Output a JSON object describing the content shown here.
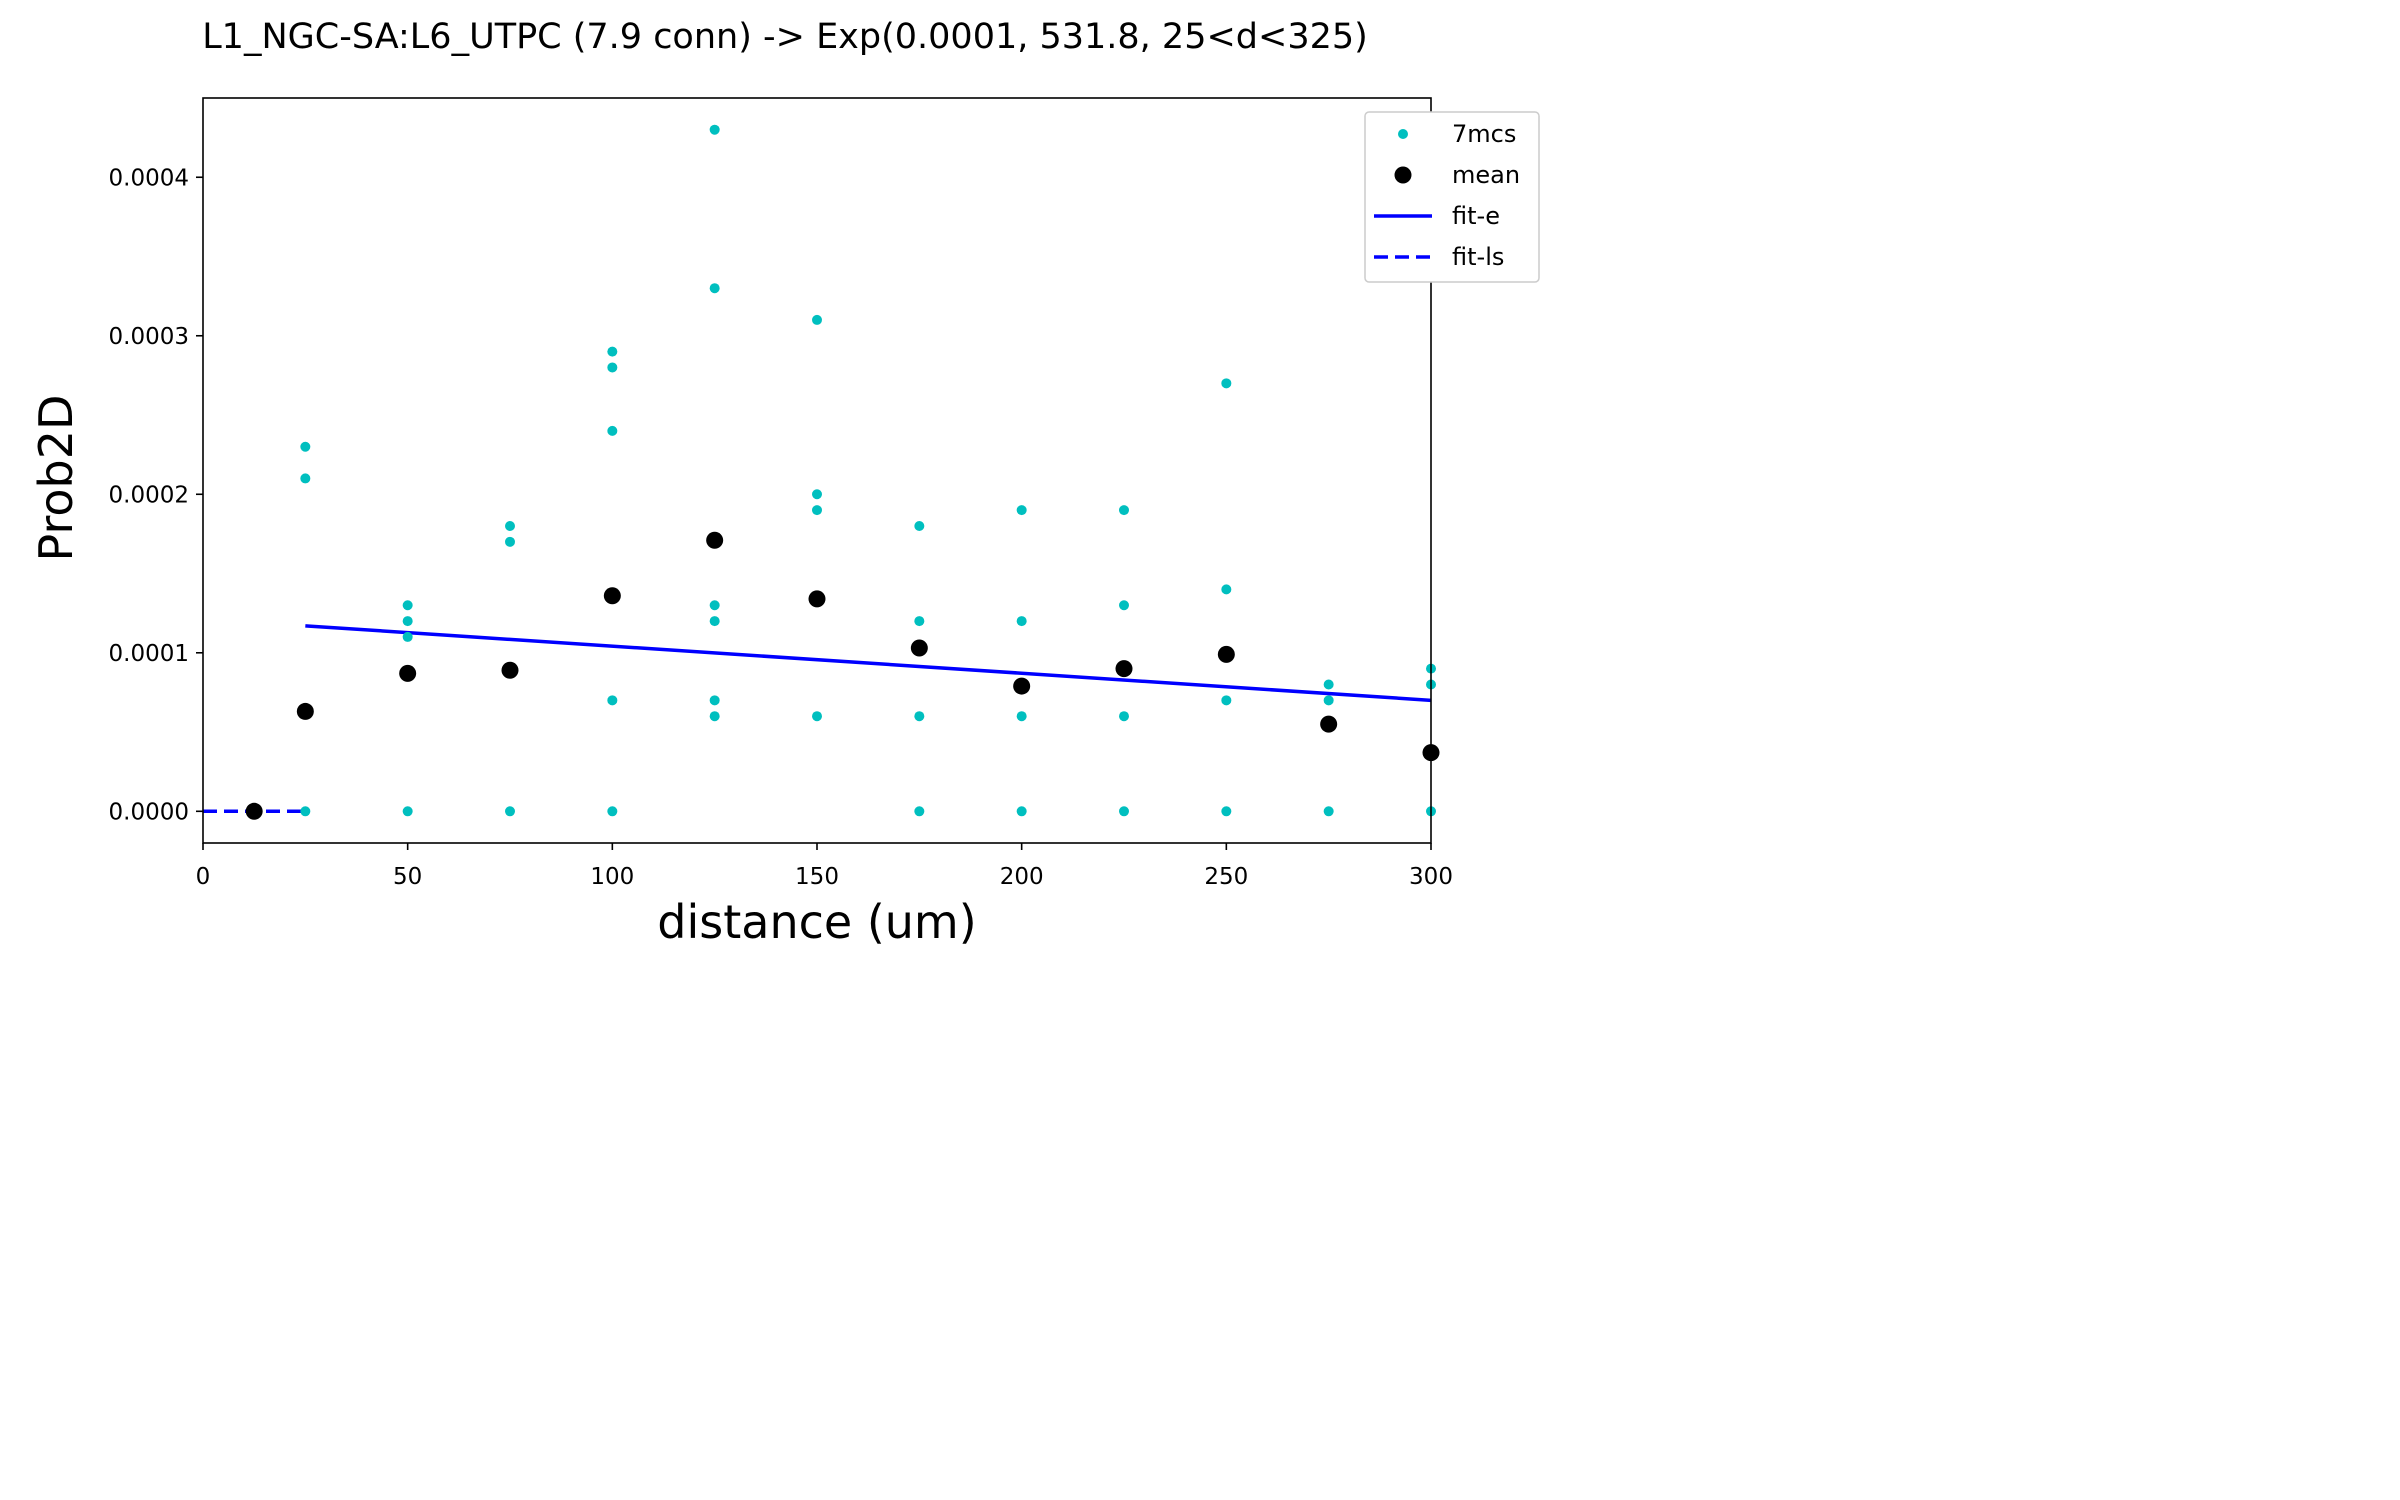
{
  "chart_data": {
    "type": "scatter",
    "title": "L1_NGC-SA:L6_UTPC (7.9 conn) -> Exp(0.0001, 531.8, 25<d<325)",
    "xlabel": "distance (um)",
    "ylabel": "Prob2D",
    "xlim": [
      0,
      300
    ],
    "ylim": [
      -2e-05,
      0.00045
    ],
    "x_ticks": [
      0,
      50,
      100,
      150,
      200,
      250,
      300
    ],
    "x_tick_labels": [
      "0",
      "50",
      "100",
      "150",
      "200",
      "250",
      "300"
    ],
    "y_ticks": [
      0,
      0.0001,
      0.0002,
      0.0003,
      0.0004
    ],
    "y_tick_labels": [
      "0.0000",
      "0.0001",
      "0.0002",
      "0.0003",
      "0.0004"
    ],
    "grid": false,
    "legend_position": "top-right",
    "legend": [
      "7mcs",
      "mean",
      "fit-e",
      "fit-ls"
    ],
    "series": [
      {
        "name": "7mcs",
        "kind": "scatter",
        "color": "#00bfbf",
        "points": [
          [
            25,
            0.00023
          ],
          [
            25,
            0.00021
          ],
          [
            25,
            0
          ],
          [
            50,
            0.00013
          ],
          [
            50,
            0.00012
          ],
          [
            50,
            0.00011
          ],
          [
            50,
            0
          ],
          [
            75,
            0.00018
          ],
          [
            75,
            0.00017
          ],
          [
            75,
            0
          ],
          [
            100,
            0.00029
          ],
          [
            100,
            0.00028
          ],
          [
            100,
            0.00024
          ],
          [
            100,
            7e-05
          ],
          [
            100,
            0
          ],
          [
            125,
            0.00043
          ],
          [
            125,
            0.00033
          ],
          [
            125,
            0.00013
          ],
          [
            125,
            0.00012
          ],
          [
            125,
            7e-05
          ],
          [
            125,
            6e-05
          ],
          [
            150,
            0.00031
          ],
          [
            150,
            0.0002
          ],
          [
            150,
            0.00019
          ],
          [
            150,
            6e-05
          ],
          [
            175,
            0.00018
          ],
          [
            175,
            0.00012
          ],
          [
            175,
            6e-05
          ],
          [
            175,
            0
          ],
          [
            200,
            0.00019
          ],
          [
            200,
            0.00012
          ],
          [
            200,
            6e-05
          ],
          [
            200,
            0
          ],
          [
            225,
            0.00019
          ],
          [
            225,
            0.00013
          ],
          [
            225,
            6e-05
          ],
          [
            225,
            0
          ],
          [
            250,
            0.00027
          ],
          [
            250,
            0.00014
          ],
          [
            250,
            7e-05
          ],
          [
            250,
            0
          ],
          [
            275,
            8e-05
          ],
          [
            275,
            7e-05
          ],
          [
            275,
            0
          ],
          [
            300,
            9e-05
          ],
          [
            300,
            8e-05
          ],
          [
            300,
            0
          ]
        ]
      },
      {
        "name": "mean",
        "kind": "scatter",
        "color": "#000000",
        "points": [
          [
            12.5,
            0
          ],
          [
            25,
            6.3e-05
          ],
          [
            50,
            8.7e-05
          ],
          [
            75,
            8.9e-05
          ],
          [
            100,
            0.000136
          ],
          [
            125,
            0.000171
          ],
          [
            150,
            0.000134
          ],
          [
            175,
            0.000103
          ],
          [
            200,
            7.9e-05
          ],
          [
            225,
            9e-05
          ],
          [
            250,
            9.9e-05
          ],
          [
            275,
            5.5e-05
          ],
          [
            300,
            3.7e-05
          ]
        ]
      },
      {
        "name": "fit-e",
        "kind": "line",
        "color": "#0000ff",
        "points": [
          [
            25,
            0.000117
          ],
          [
            300,
            7e-05
          ]
        ]
      },
      {
        "name": "fit-ls",
        "kind": "dashed-line",
        "color": "#0000ff",
        "points": [
          [
            0,
            0
          ],
          [
            25,
            0
          ]
        ]
      }
    ]
  }
}
